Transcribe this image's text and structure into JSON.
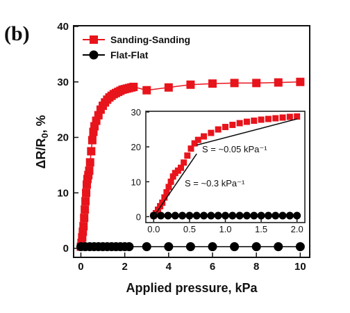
{
  "panel_label": "(b)",
  "chart_data": [
    {
      "type": "scatter",
      "title": "",
      "xlabel": "Applied pressure, kPa",
      "ylabel": "ΔR/R0, %",
      "ylabel_parts": {
        "delta": "ΔR/R",
        "sub": "0",
        "tail": ", %"
      },
      "xlim": [
        -0.3,
        10.4
      ],
      "ylim": [
        -1.5,
        40
      ],
      "xticks": [
        0,
        2,
        4,
        6,
        8,
        10
      ],
      "yticks": [
        0,
        10,
        20,
        30,
        40
      ],
      "grid": false,
      "legend_position": "top-left",
      "series": [
        {
          "name": "Sanding-Sanding",
          "color": "#e8141c",
          "marker": "square",
          "line": true,
          "x": [
            0,
            0.03,
            0.06,
            0.09,
            0.12,
            0.15,
            0.18,
            0.21,
            0.24,
            0.27,
            0.3,
            0.34,
            0.38,
            0.42,
            0.47,
            0.52,
            0.57,
            0.62,
            0.7,
            0.8,
            0.9,
            1.0,
            1.1,
            1.2,
            1.3,
            1.4,
            1.5,
            1.6,
            1.7,
            1.8,
            1.9,
            2.0,
            2.1,
            2.2,
            2.3,
            2.4,
            3.0,
            4.0,
            5.0,
            6.0,
            7.0,
            8.0,
            9.0,
            10.0
          ],
          "y": [
            0.3,
            1.0,
            2.0,
            3.0,
            4.0,
            5.5,
            7.0,
            8.5,
            10.0,
            11.5,
            12.5,
            13.2,
            14.0,
            15.5,
            17.5,
            19.5,
            21.0,
            22.0,
            23.0,
            24.0,
            25.0,
            25.7,
            26.3,
            26.8,
            27.2,
            27.5,
            27.8,
            28.0,
            28.2,
            28.4,
            28.6,
            28.7,
            28.8,
            28.9,
            29.0,
            29.1,
            28.5,
            29.0,
            29.5,
            29.7,
            29.8,
            29.8,
            29.9,
            30.0
          ]
        },
        {
          "name": "Flat-Flat",
          "color": "#000000",
          "marker": "circle",
          "line": true,
          "x": [
            0,
            0.2,
            0.4,
            0.6,
            0.8,
            1.0,
            1.2,
            1.4,
            1.6,
            1.8,
            2.0,
            2.2,
            3.0,
            4.0,
            5.0,
            6.0,
            7.0,
            8.0,
            9.0,
            10.0
          ],
          "y": [
            0.3,
            0.3,
            0.3,
            0.3,
            0.3,
            0.3,
            0.3,
            0.3,
            0.3,
            0.3,
            0.3,
            0.3,
            0.3,
            0.3,
            0.3,
            0.3,
            0.3,
            0.3,
            0.3,
            0.3
          ]
        }
      ]
    },
    {
      "type": "scatter",
      "title": "",
      "xlabel": "",
      "ylabel": "",
      "xlim": [
        -0.1,
        2.1
      ],
      "ylim": [
        -1.5,
        30
      ],
      "xticks": [
        0.0,
        0.5,
        1.0,
        1.5,
        2.0
      ],
      "xtick_labels": [
        "0.0",
        "0.5",
        "1.0",
        "1.5",
        "2.0"
      ],
      "yticks": [
        0,
        10,
        20,
        30
      ],
      "grid": false,
      "series": [
        {
          "name": "Sanding-Sanding",
          "color": "#e8141c",
          "marker": "square",
          "x": [
            0,
            0.03,
            0.06,
            0.09,
            0.12,
            0.15,
            0.18,
            0.21,
            0.24,
            0.27,
            0.3,
            0.34,
            0.38,
            0.42,
            0.47,
            0.52,
            0.57,
            0.62,
            0.7,
            0.8,
            0.9,
            1.0,
            1.1,
            1.2,
            1.3,
            1.4,
            1.5,
            1.6,
            1.7,
            1.8,
            1.9,
            2.0
          ],
          "y": [
            0.3,
            1.0,
            2.0,
            3.0,
            4.0,
            5.5,
            7.0,
            8.5,
            10.0,
            11.5,
            12.5,
            13.2,
            14.0,
            15.5,
            17.5,
            19.5,
            21.0,
            22.0,
            23.0,
            24.0,
            25.0,
            25.7,
            26.3,
            26.8,
            27.2,
            27.5,
            27.8,
            28.0,
            28.2,
            28.4,
            28.6,
            28.7
          ]
        },
        {
          "name": "Flat-Flat",
          "color": "#000000",
          "marker": "circle",
          "x": [
            0,
            0.1,
            0.2,
            0.3,
            0.4,
            0.5,
            0.6,
            0.7,
            0.8,
            0.9,
            1.0,
            1.1,
            1.2,
            1.3,
            1.4,
            1.5,
            1.6,
            1.7,
            1.8,
            1.9,
            2.0
          ],
          "y": [
            0.3,
            0.3,
            0.3,
            0.3,
            0.3,
            0.3,
            0.3,
            0.3,
            0.3,
            0.3,
            0.3,
            0.3,
            0.3,
            0.3,
            0.3,
            0.3,
            0.3,
            0.3,
            0.3,
            0.3,
            0.3
          ]
        }
      ],
      "fit_lines": [
        {
          "x": [
            0,
            0.6
          ],
          "y": [
            0,
            18
          ]
        },
        {
          "x": [
            0.6,
            2.0
          ],
          "y": [
            20.5,
            28
          ]
        }
      ],
      "annotations": [
        {
          "text": "S = ~0.05 kPa⁻¹",
          "x": 0.73,
          "y": 15.5
        },
        {
          "text": "S = ~0.3 kPa⁻¹",
          "x": 0.4,
          "y": 5.5
        }
      ]
    }
  ]
}
